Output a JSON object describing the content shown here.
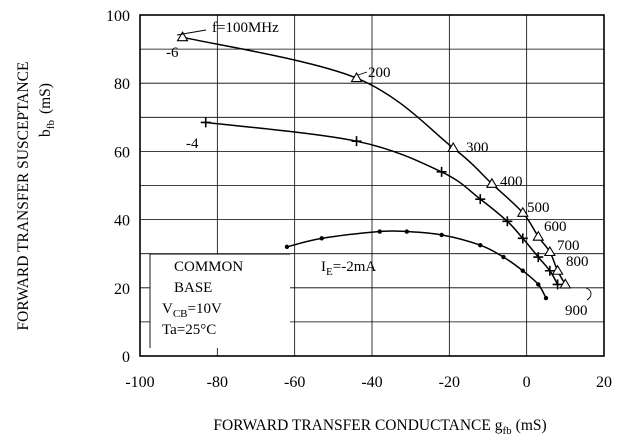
{
  "chart_data": {
    "type": "line",
    "xlabel": "FORWARD TRANSFER CONDUCTANCE",
    "xlabel_symbol": "g",
    "xlabel_sub": "fb",
    "xlabel_unit": "(mS)",
    "ylabel_line1": "FORWARD TRANSFER SUSCEPTANCE",
    "ylabel_symbol": "b",
    "ylabel_sub": "fb",
    "ylabel_unit": "(mS)",
    "xlim": [
      -100,
      20
    ],
    "ylim": [
      0,
      100
    ],
    "x_ticks": [
      -100,
      -80,
      -60,
      -40,
      -20,
      0,
      20
    ],
    "y_ticks": [
      0,
      20,
      40,
      60,
      80,
      100
    ],
    "x_tick_labels": [
      "-100",
      "-80",
      "-60",
      "-40",
      "-20",
      "0",
      "20"
    ],
    "y_tick_labels": [
      "0",
      "20",
      "40",
      "60",
      "80",
      "100"
    ],
    "grid": true,
    "series": [
      {
        "name": "-6",
        "marker": "triangle",
        "points": [
          [
            -89,
            93.5
          ],
          [
            -44,
            81.5
          ],
          [
            -19,
            61
          ],
          [
            -9,
            50.5
          ],
          [
            -1,
            42
          ],
          [
            3,
            35
          ],
          [
            6,
            30.5
          ],
          [
            8,
            25
          ],
          [
            10,
            21
          ]
        ]
      },
      {
        "name": "-4",
        "marker": "plus",
        "points": [
          [
            -83,
            68.5
          ],
          [
            -44,
            63
          ],
          [
            -22,
            54
          ],
          [
            -12,
            46
          ],
          [
            -5,
            39.5
          ],
          [
            -1,
            34.5
          ],
          [
            3,
            29
          ],
          [
            6,
            25
          ],
          [
            8,
            21
          ]
        ]
      },
      {
        "name": "I_E=-2mA",
        "marker": "dot",
        "points": [
          [
            -62,
            32
          ],
          [
            -53,
            34.5
          ],
          [
            -38,
            36.5
          ],
          [
            -31,
            36.5
          ],
          [
            -22,
            35.5
          ],
          [
            -12,
            32.5
          ],
          [
            -6,
            29
          ],
          [
            -1,
            25
          ],
          [
            3,
            21
          ],
          [
            5,
            17
          ]
        ]
      }
    ],
    "frequency_labels": [
      {
        "text": "f=100MHz"
      },
      {
        "text": "200"
      },
      {
        "text": "300"
      },
      {
        "text": "400"
      },
      {
        "text": "500"
      },
      {
        "text": "600"
      },
      {
        "text": "700"
      },
      {
        "text": "800"
      },
      {
        "text": "900"
      }
    ],
    "annotation_box": {
      "line1": "COMMON",
      "line2": "BASE",
      "vcb_symbol": "V",
      "vcb_sub": "CB",
      "vcb_value": "=10V",
      "ta": "Ta=25°C"
    },
    "ie_label": {
      "symbol": "I",
      "sub": "E",
      "value": "=-2mA"
    }
  }
}
